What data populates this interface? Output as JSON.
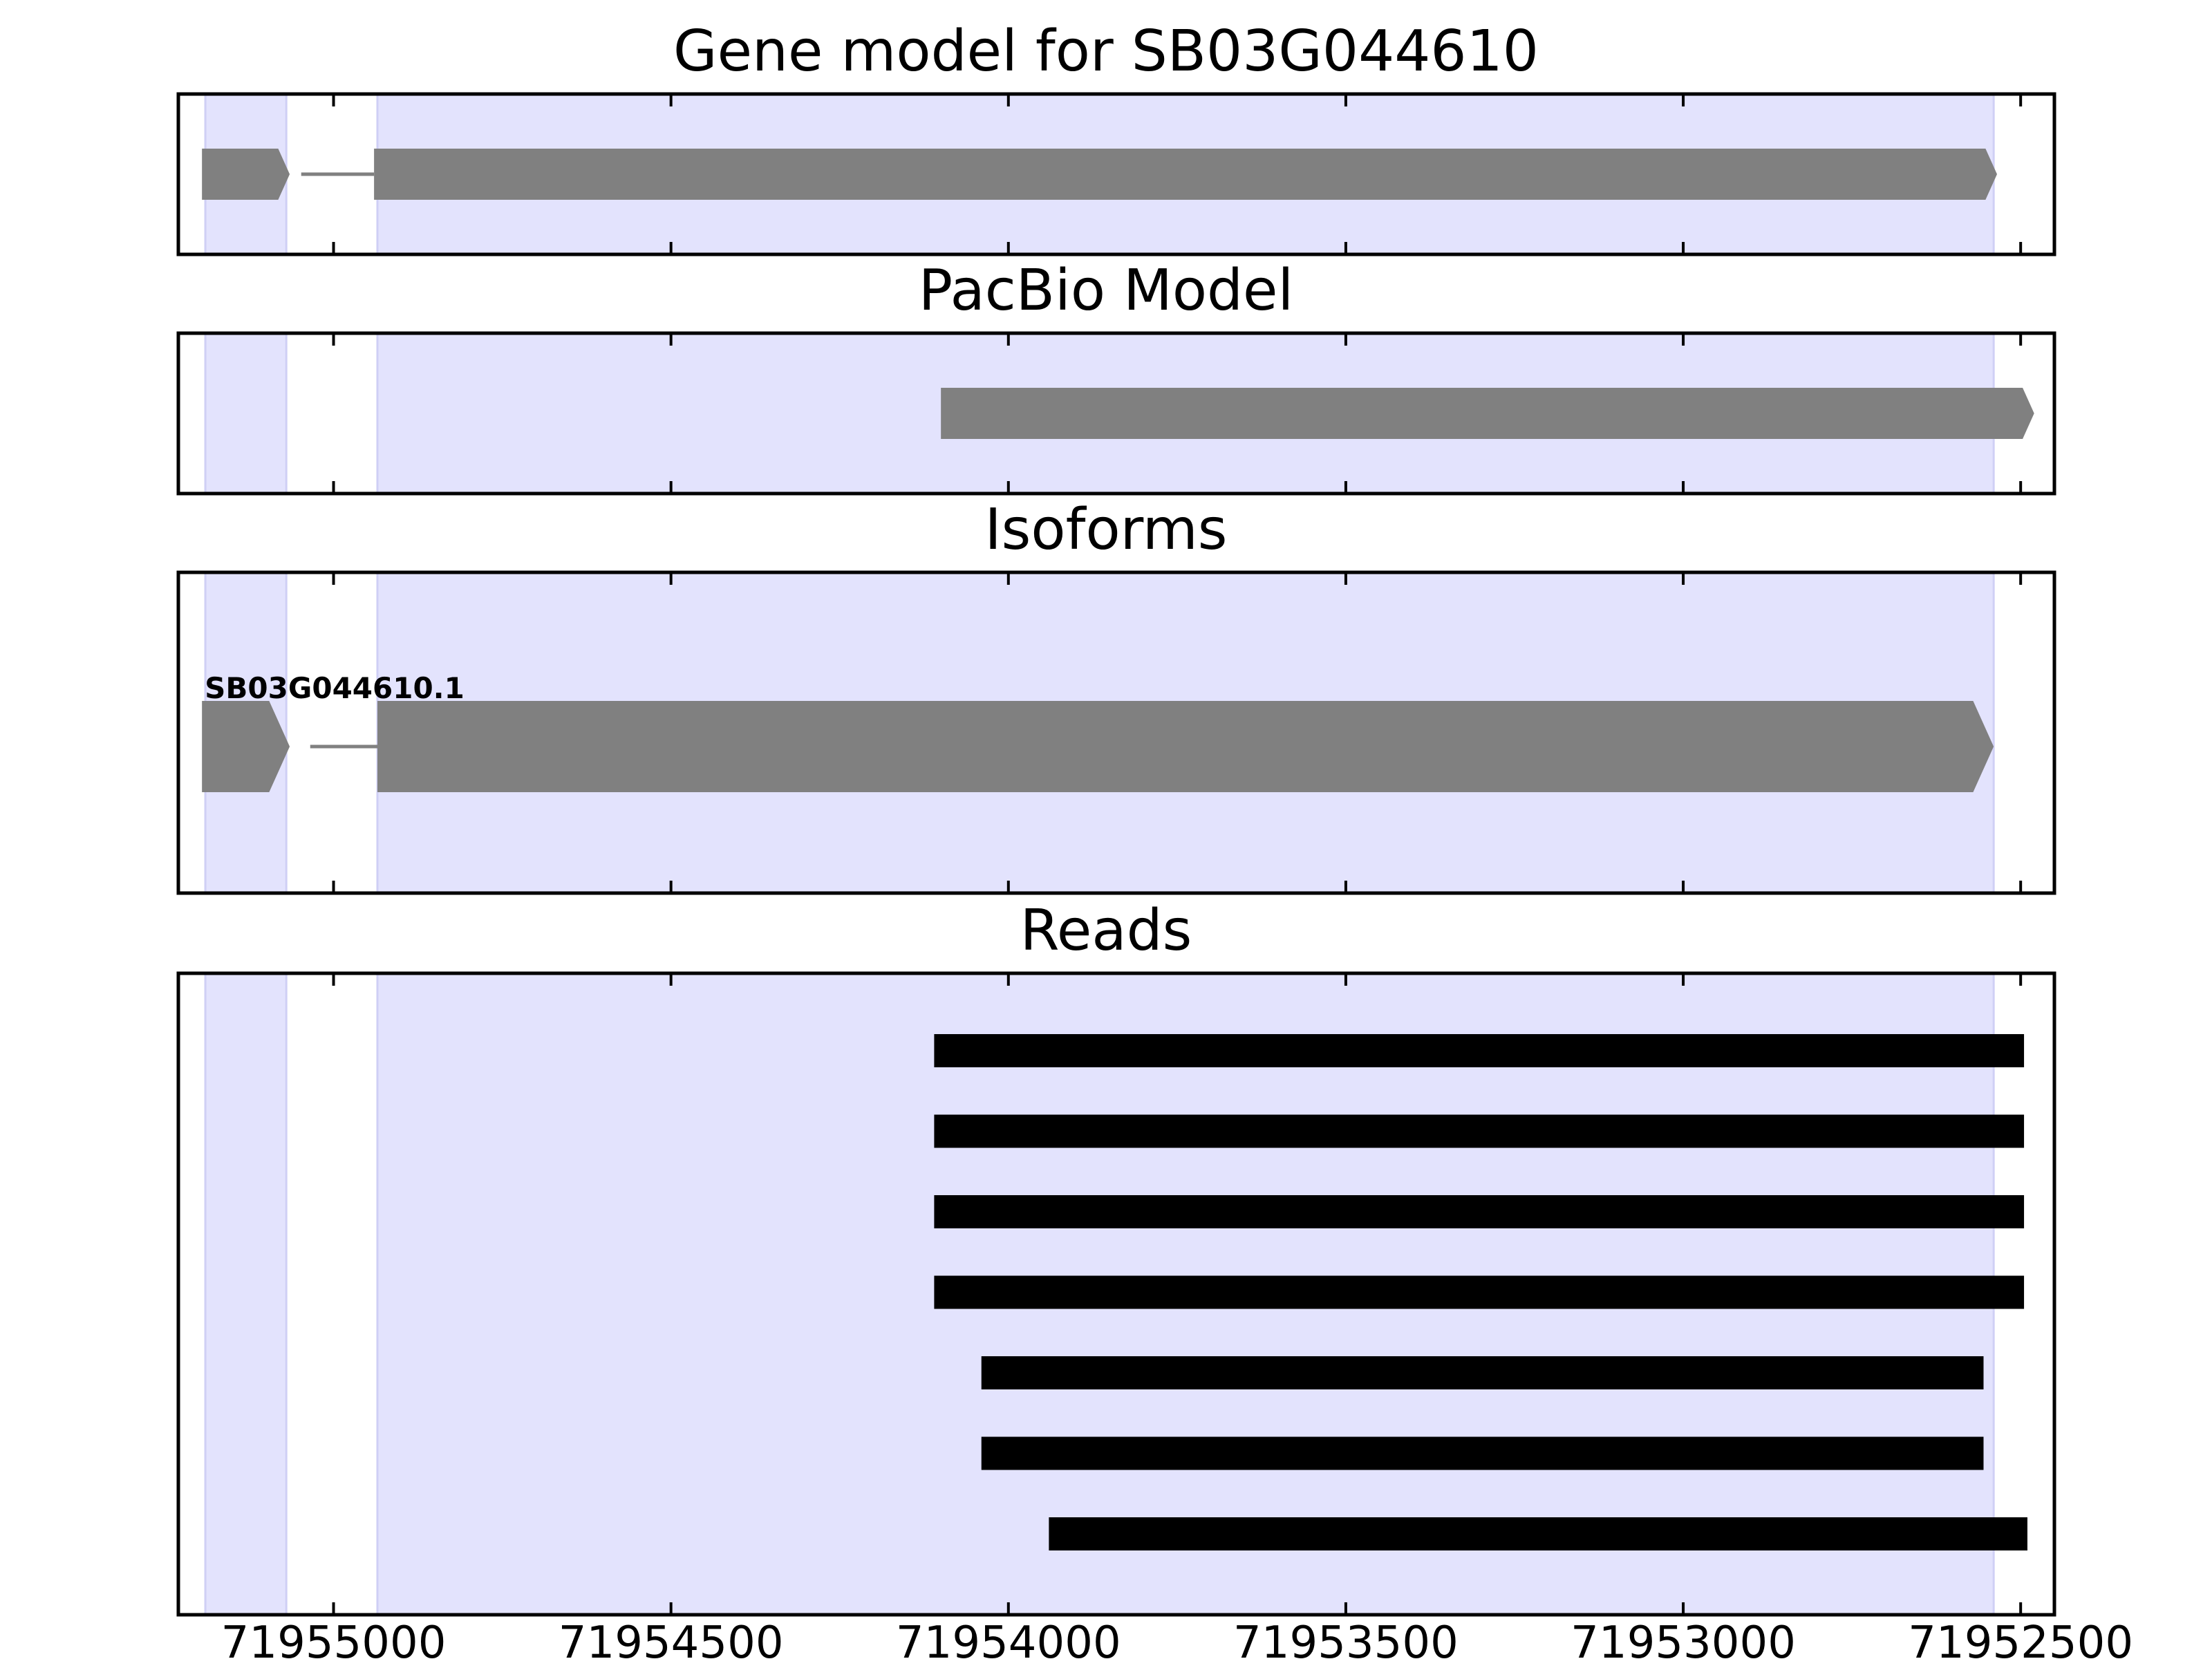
{
  "chart_data": {
    "type": "gene-model-tracks",
    "x_axis": {
      "range": [
        71955230,
        71952450
      ],
      "reversed": true,
      "ticks": [
        71955000,
        71954500,
        71954000,
        71953500,
        71953000,
        71952500
      ],
      "tick_labels": [
        "71955000",
        "71954500",
        "71954000",
        "71953500",
        "71953000",
        "71952500"
      ]
    },
    "highlight_regions": [
      [
        71955190,
        71955070
      ],
      [
        71954935,
        71952540
      ]
    ],
    "colors": {
      "highlight": "#e3e3fd",
      "feature": "#808080",
      "read": "#000000",
      "intron_line": "#808080"
    },
    "panels": [
      {
        "title": "Gene model for SB03G044610",
        "features": [
          {
            "exons": [
              [
                71955195,
                71955065
              ],
              [
                71954940,
                71952535
              ]
            ],
            "introns": [
              [
                71955065,
                71954940
              ]
            ],
            "strand": "-",
            "label": ""
          }
        ]
      },
      {
        "title": "PacBio Model",
        "features": [
          {
            "exons": [
              [
                71954100,
                71952480
              ]
            ],
            "introns": [],
            "strand": "-",
            "label": ""
          }
        ]
      },
      {
        "title": "Isoforms",
        "features": [
          {
            "exons": [
              [
                71955195,
                71955065
              ],
              [
                71954935,
                71952540
              ]
            ],
            "introns": [
              [
                71955065,
                71954935
              ]
            ],
            "strand": "-",
            "label": "SB03G044610.1"
          }
        ]
      },
      {
        "title": "Reads",
        "reads": [
          [
            71954110,
            71952495
          ],
          [
            71954110,
            71952495
          ],
          [
            71954110,
            71952495
          ],
          [
            71954110,
            71952495
          ],
          [
            71954040,
            71952555
          ],
          [
            71954040,
            71952555
          ],
          [
            71953940,
            71952490
          ]
        ]
      }
    ]
  }
}
